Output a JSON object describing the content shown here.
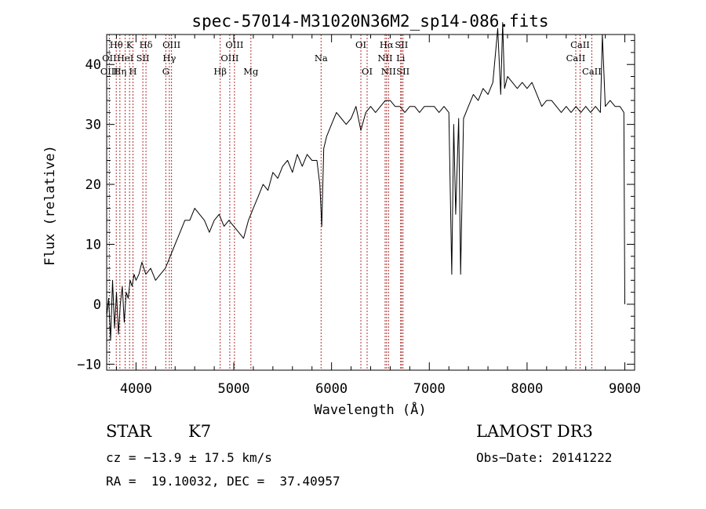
{
  "chart_data": {
    "type": "line",
    "title": "spec-57014-M31020N36M2_sp14-086.fits",
    "xlabel": "Wavelength (Å)",
    "ylabel": "Flux (relative)",
    "xlim": [
      3700,
      9100
    ],
    "ylim": [
      -11,
      45
    ],
    "xticks": [
      4000,
      5000,
      6000,
      7000,
      8000,
      9000
    ],
    "yticks": [
      -10,
      0,
      10,
      20,
      30,
      40
    ],
    "grid": false,
    "series": [
      {
        "x": [
          3700,
          3720,
          3740,
          3760,
          3780,
          3800,
          3820,
          3840,
          3860,
          3880,
          3900,
          3920,
          3940,
          3960,
          3980,
          4000,
          4030,
          4060,
          4100,
          4150,
          4200,
          4250,
          4300,
          4350,
          4400,
          4450,
          4500,
          4550,
          4600,
          4650,
          4700,
          4750,
          4800,
          4850,
          4900,
          4950,
          5000,
          5050,
          5100,
          5150,
          5200,
          5250,
          5300,
          5350,
          5400,
          5450,
          5500,
          5550,
          5600,
          5650,
          5700,
          5750,
          5800,
          5850,
          5880,
          5900,
          5920,
          5950,
          6000,
          6050,
          6100,
          6150,
          6200,
          6250,
          6300,
          6350,
          6400,
          6450,
          6500,
          6550,
          6600,
          6650,
          6700,
          6750,
          6800,
          6850,
          6900,
          6950,
          7000,
          7050,
          7100,
          7150,
          7200,
          7230,
          7250,
          7270,
          7300,
          7320,
          7350,
          7400,
          7450,
          7500,
          7550,
          7600,
          7650,
          7700,
          7730,
          7750,
          7770,
          7800,
          7850,
          7900,
          7950,
          8000,
          8050,
          8100,
          8150,
          8200,
          8250,
          8300,
          8350,
          8400,
          8450,
          8500,
          8550,
          8600,
          8650,
          8700,
          8750,
          8770,
          8800,
          8850,
          8900,
          8950,
          8990,
          9000
        ],
        "values": [
          -2,
          1,
          -6,
          4,
          -4,
          2,
          -5,
          0,
          3,
          -3,
          2,
          1,
          4,
          3,
          5,
          4,
          5,
          7,
          5,
          6,
          4,
          5,
          6,
          8,
          10,
          12,
          14,
          14,
          16,
          15,
          14,
          12,
          14,
          15,
          13,
          14,
          13,
          12,
          11,
          14,
          16,
          18,
          20,
          19,
          22,
          21,
          23,
          24,
          22,
          25,
          23,
          25,
          24,
          24,
          20,
          13,
          26,
          28,
          30,
          32,
          31,
          30,
          31,
          33,
          29,
          32,
          33,
          32,
          33,
          34,
          34,
          33,
          33,
          32,
          33,
          33,
          32,
          33,
          33,
          33,
          32,
          33,
          32,
          5,
          30,
          15,
          31,
          5,
          31,
          33,
          35,
          34,
          36,
          35,
          37,
          46,
          35,
          47,
          36,
          38,
          37,
          36,
          37,
          36,
          37,
          35,
          33,
          34,
          34,
          33,
          32,
          33,
          32,
          33,
          32,
          33,
          32,
          33,
          32,
          45,
          33,
          34,
          33,
          33,
          32,
          0
        ]
      }
    ],
    "line_labels": [
      {
        "text": "Hθ",
        "x": 3798,
        "row": 0
      },
      {
        "text": "OII",
        "x": 3727,
        "row": 1
      },
      {
        "text": "OIII",
        "x": 3727,
        "row": 2
      },
      {
        "text": "K",
        "x": 3934,
        "row": 0
      },
      {
        "text": "HeI",
        "x": 3889,
        "row": 1
      },
      {
        "text": "SII",
        "x": 4070,
        "row": 1
      },
      {
        "text": "Hη",
        "x": 3835,
        "row": 2
      },
      {
        "text": "H",
        "x": 3969,
        "row": 2
      },
      {
        "text": "Hδ",
        "x": 4102,
        "row": 0
      },
      {
        "text": "OIII",
        "x": 4363,
        "row": 0
      },
      {
        "text": "Hγ",
        "x": 4341,
        "row": 1
      },
      {
        "text": "G",
        "x": 4305,
        "row": 2
      },
      {
        "text": "OIII",
        "x": 5007,
        "row": 0
      },
      {
        "text": "OIII",
        "x": 4959,
        "row": 1
      },
      {
        "text": "Hβ",
        "x": 4861,
        "row": 2
      },
      {
        "text": "Mg",
        "x": 5175,
        "row": 2
      },
      {
        "text": "Na",
        "x": 5893,
        "row": 1
      },
      {
        "text": "OI",
        "x": 6300,
        "row": 0
      },
      {
        "text": "OI",
        "x": 6364,
        "row": 2
      },
      {
        "text": "Hα",
        "x": 6563,
        "row": 0
      },
      {
        "text": "SII",
        "x": 6716,
        "row": 0
      },
      {
        "text": "NII",
        "x": 6548,
        "row": 1
      },
      {
        "text": "Li",
        "x": 6707,
        "row": 1
      },
      {
        "text": "NII",
        "x": 6583,
        "row": 2
      },
      {
        "text": "SII",
        "x": 6731,
        "row": 2
      },
      {
        "text": "CaII",
        "x": 8542,
        "row": 0
      },
      {
        "text": "CaII",
        "x": 8498,
        "row": 1
      },
      {
        "text": "CaII",
        "x": 8662,
        "row": 2
      }
    ],
    "line_markers": [
      3727,
      3798,
      3835,
      3889,
      3934,
      3969,
      4070,
      4102,
      4305,
      4341,
      4363,
      4861,
      4959,
      5007,
      5175,
      5893,
      6300,
      6364,
      6548,
      6563,
      6583,
      6707,
      6716,
      6731,
      8498,
      8542,
      8662
    ]
  },
  "info": {
    "object_class": "STAR",
    "subclass": "K7",
    "survey": "LAMOST DR3",
    "cz": "cz = −13.9 ± 17.5 km/s",
    "obs_date": "Obs−Date: 20141222",
    "radec": "RA =  19.10032, DEC =  37.40957"
  }
}
